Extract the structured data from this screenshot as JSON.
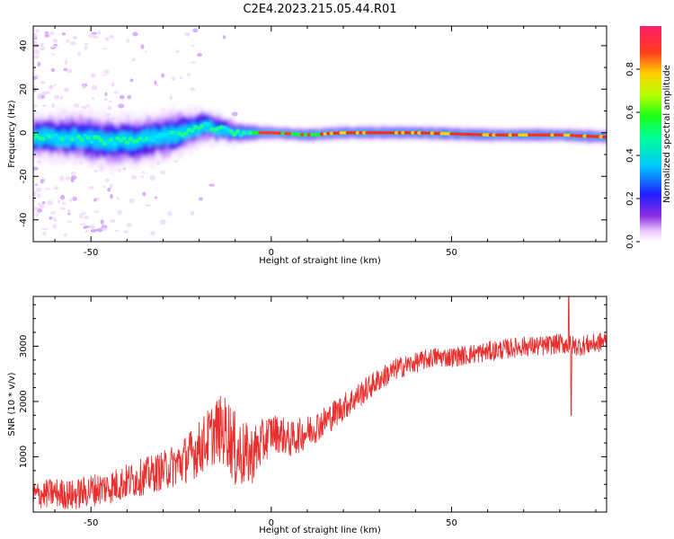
{
  "title": "C2E4.2023.215.05.44.R01",
  "colors": {
    "snr_line": "#e8302f",
    "spectral_line": "#e8302f",
    "background": "#ffffff"
  },
  "chart_data": [
    {
      "type": "heatmap",
      "xlabel": "Height of straight line (km)",
      "ylabel": "Frequency (Hz)",
      "xlim": [
        -66,
        93
      ],
      "ylim": [
        -50,
        49
      ],
      "xticks": [
        -50,
        0,
        50
      ],
      "xtick_labels": [
        "-50",
        "0",
        "50"
      ],
      "yticks": [
        -40,
        -20,
        0,
        20,
        40
      ],
      "ytick_labels": [
        "-40",
        "-20",
        "0",
        "20",
        "40"
      ],
      "grid": false,
      "colorbar": {
        "label": "Normalized spectral amplitude",
        "range": [
          0,
          1
        ],
        "ticks": [
          0.0,
          0.2,
          0.4,
          0.6,
          0.8
        ],
        "tick_labels": [
          "0.0",
          "0.2",
          "0.4",
          "0.6",
          "0.8"
        ],
        "colormap": "rainbow (white-violet-blue-cyan-green-yellow-red-magenta)"
      },
      "ridge_center_hz": [
        {
          "x": -66,
          "f": -2
        },
        {
          "x": -55,
          "f": -2
        },
        {
          "x": -45,
          "f": -4
        },
        {
          "x": -35,
          "f": -3
        },
        {
          "x": -25,
          "f": 0
        },
        {
          "x": -18,
          "f": 3
        },
        {
          "x": -10,
          "f": 0
        },
        {
          "x": 0,
          "f": 0
        },
        {
          "x": 10,
          "f": -1
        },
        {
          "x": 20,
          "f": 0
        },
        {
          "x": 40,
          "f": 0
        },
        {
          "x": 60,
          "f": -1
        },
        {
          "x": 80,
          "f": -1
        },
        {
          "x": 93,
          "f": -2
        }
      ],
      "ridge_halfwidth_hz": [
        {
          "x": -66,
          "w": 6
        },
        {
          "x": -45,
          "w": 7
        },
        {
          "x": -25,
          "w": 6
        },
        {
          "x": -10,
          "w": 3
        },
        {
          "x": 0,
          "w": 2
        },
        {
          "x": 40,
          "w": 2
        },
        {
          "x": 93,
          "w": 2
        }
      ]
    },
    {
      "type": "line",
      "xlabel": "Height of straight line (km)",
      "ylabel": "SNR (10 * v/v)",
      "xlim": [
        -66,
        93
      ],
      "ylim": [
        0,
        3900
      ],
      "xticks": [
        -50,
        0,
        50
      ],
      "xtick_labels": [
        "-50",
        "0",
        "50"
      ],
      "yticks": [
        1000,
        2000,
        3000
      ],
      "ytick_labels": [
        "1000",
        "2000",
        "3000"
      ],
      "grid": false,
      "series": [
        {
          "points": [
            {
              "x": -66,
              "y": 300
            },
            {
              "x": -60,
              "y": 350
            },
            {
              "x": -55,
              "y": 300
            },
            {
              "x": -50,
              "y": 400
            },
            {
              "x": -45,
              "y": 450
            },
            {
              "x": -40,
              "y": 550
            },
            {
              "x": -35,
              "y": 650
            },
            {
              "x": -30,
              "y": 750
            },
            {
              "x": -25,
              "y": 900
            },
            {
              "x": -20,
              "y": 1150
            },
            {
              "x": -15,
              "y": 1500
            },
            {
              "x": -12,
              "y": 1450
            },
            {
              "x": -10,
              "y": 1100
            },
            {
              "x": -6,
              "y": 1000
            },
            {
              "x": -3,
              "y": 1200
            },
            {
              "x": 0,
              "y": 1450
            },
            {
              "x": 3,
              "y": 1400
            },
            {
              "x": 5,
              "y": 1300
            },
            {
              "x": 10,
              "y": 1450
            },
            {
              "x": 15,
              "y": 1650
            },
            {
              "x": 20,
              "y": 1900
            },
            {
              "x": 25,
              "y": 2150
            },
            {
              "x": 30,
              "y": 2400
            },
            {
              "x": 35,
              "y": 2600
            },
            {
              "x": 40,
              "y": 2700
            },
            {
              "x": 45,
              "y": 2800
            },
            {
              "x": 50,
              "y": 2800
            },
            {
              "x": 55,
              "y": 2850
            },
            {
              "x": 60,
              "y": 2900
            },
            {
              "x": 65,
              "y": 2950
            },
            {
              "x": 70,
              "y": 3000
            },
            {
              "x": 75,
              "y": 3000
            },
            {
              "x": 80,
              "y": 3050
            },
            {
              "x": 85,
              "y": 3000
            },
            {
              "x": 90,
              "y": 3050
            },
            {
              "x": 93,
              "y": 3100
            }
          ],
          "noise_amplitude": [
            {
              "x": -66,
              "a": 250
            },
            {
              "x": -30,
              "a": 350
            },
            {
              "x": -20,
              "a": 500
            },
            {
              "x": -10,
              "a": 700
            },
            {
              "x": 0,
              "a": 350
            },
            {
              "x": 20,
              "a": 250
            },
            {
              "x": 40,
              "a": 180
            },
            {
              "x": 93,
              "a": 180
            }
          ],
          "features": [
            {
              "x": 82.5,
              "y": 3900,
              "note": "peak"
            },
            {
              "x": 83.2,
              "y": 1750,
              "note": "dip"
            }
          ]
        }
      ]
    }
  ]
}
